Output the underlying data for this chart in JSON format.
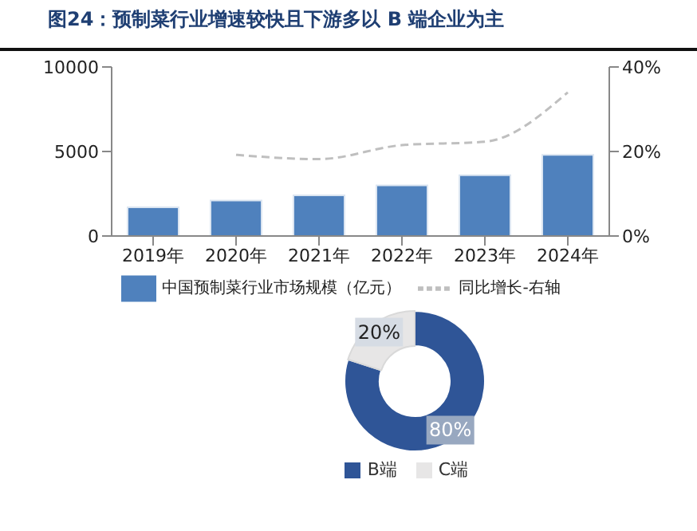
{
  "chart_data": [
    {
      "type": "bar",
      "title": "图24：预制菜行业增速较快且下游多以 B 端企业为主",
      "categories": [
        "2019年",
        "2020年",
        "2021年",
        "2022年",
        "2023年",
        "2024年"
      ],
      "series": [
        {
          "name": "中国预制菜行业市场规模（亿元）",
          "type": "bar",
          "color": "#4f81bd",
          "values": [
            1700,
            2100,
            2400,
            3000,
            3600,
            4800
          ]
        },
        {
          "name": "同比增长-右轴",
          "type": "line",
          "axis": "y2",
          "color": "#bfbfbf",
          "line_style": "dashed",
          "marker": "none",
          "values": [
            null,
            19.2,
            18.2,
            21.5,
            22.3,
            34
          ]
        }
      ],
      "ylim": [
        0,
        10000
      ],
      "yticks": [
        0,
        5000,
        10000
      ],
      "y2lim": [
        0,
        40
      ],
      "y2ticks": [
        {
          "value": 0,
          "label": "0%"
        },
        {
          "value": 20,
          "label": "20%"
        },
        {
          "value": 40,
          "label": "40%"
        }
      ],
      "grid": false,
      "legend": "bottom"
    },
    {
      "type": "donut",
      "categories": [
        "B端",
        "C端"
      ],
      "values": [
        80,
        20
      ],
      "colors": [
        "#2f5597",
        "#e7e6e6"
      ],
      "value_labels": [
        "80%",
        "20%"
      ],
      "legend": "bottom"
    }
  ]
}
